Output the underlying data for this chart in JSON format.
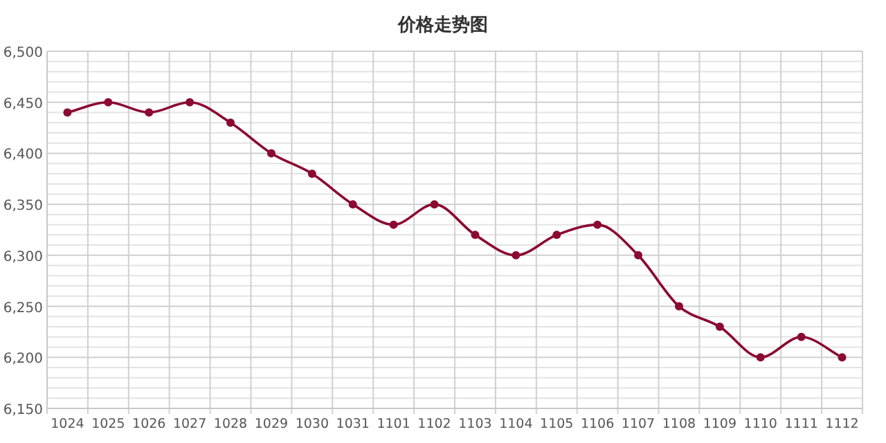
{
  "chart_data": {
    "type": "line",
    "title": "价格走势图",
    "categories": [
      "1024",
      "1025",
      "1026",
      "1027",
      "1028",
      "1029",
      "1030",
      "1031",
      "1101",
      "1102",
      "1103",
      "1104",
      "1105",
      "1106",
      "1107",
      "1108",
      "1109",
      "1110",
      "1111",
      "1112"
    ],
    "series": [
      {
        "color": "#8b0a32",
        "values": [
          6440,
          6450,
          6440,
          6450,
          6430,
          6400,
          6380,
          6350,
          6330,
          6350,
          6320,
          6300,
          6320,
          6330,
          6300,
          6250,
          6230,
          6200,
          6220,
          6200
        ]
      }
    ],
    "ylim": [
      6150,
      6500
    ],
    "yticks": [
      {
        "value": 6150,
        "label": "6,150"
      },
      {
        "value": 6160,
        "label": null
      },
      {
        "value": 6170,
        "label": null
      },
      {
        "value": 6180,
        "label": null
      },
      {
        "value": 6190,
        "label": null
      },
      {
        "value": 6200,
        "label": "6,200"
      },
      {
        "value": 6210,
        "label": null
      },
      {
        "value": 6220,
        "label": null
      },
      {
        "value": 6230,
        "label": null
      },
      {
        "value": 6240,
        "label": null
      },
      {
        "value": 6250,
        "label": "6,250"
      },
      {
        "value": 6260,
        "label": null
      },
      {
        "value": 6270,
        "label": null
      },
      {
        "value": 6280,
        "label": null
      },
      {
        "value": 6290,
        "label": null
      },
      {
        "value": 6300,
        "label": "6,300"
      },
      {
        "value": 6310,
        "label": null
      },
      {
        "value": 6320,
        "label": null
      },
      {
        "value": 6330,
        "label": null
      },
      {
        "value": 6340,
        "label": null
      },
      {
        "value": 6350,
        "label": "6,350"
      },
      {
        "value": 6360,
        "label": null
      },
      {
        "value": 6370,
        "label": null
      },
      {
        "value": 6380,
        "label": null
      },
      {
        "value": 6390,
        "label": null
      },
      {
        "value": 6400,
        "label": "6,400"
      },
      {
        "value": 6410,
        "label": null
      },
      {
        "value": 6420,
        "label": null
      },
      {
        "value": 6430,
        "label": null
      },
      {
        "value": 6440,
        "label": null
      },
      {
        "value": 6450,
        "label": "6,450"
      },
      {
        "value": 6460,
        "label": null
      },
      {
        "value": 6470,
        "label": null
      },
      {
        "value": 6480,
        "label": null
      },
      {
        "value": 6490,
        "label": null
      },
      {
        "value": 6500,
        "label": "6,500"
      }
    ],
    "grid": true,
    "marker": "circle",
    "line_style": "solid"
  }
}
